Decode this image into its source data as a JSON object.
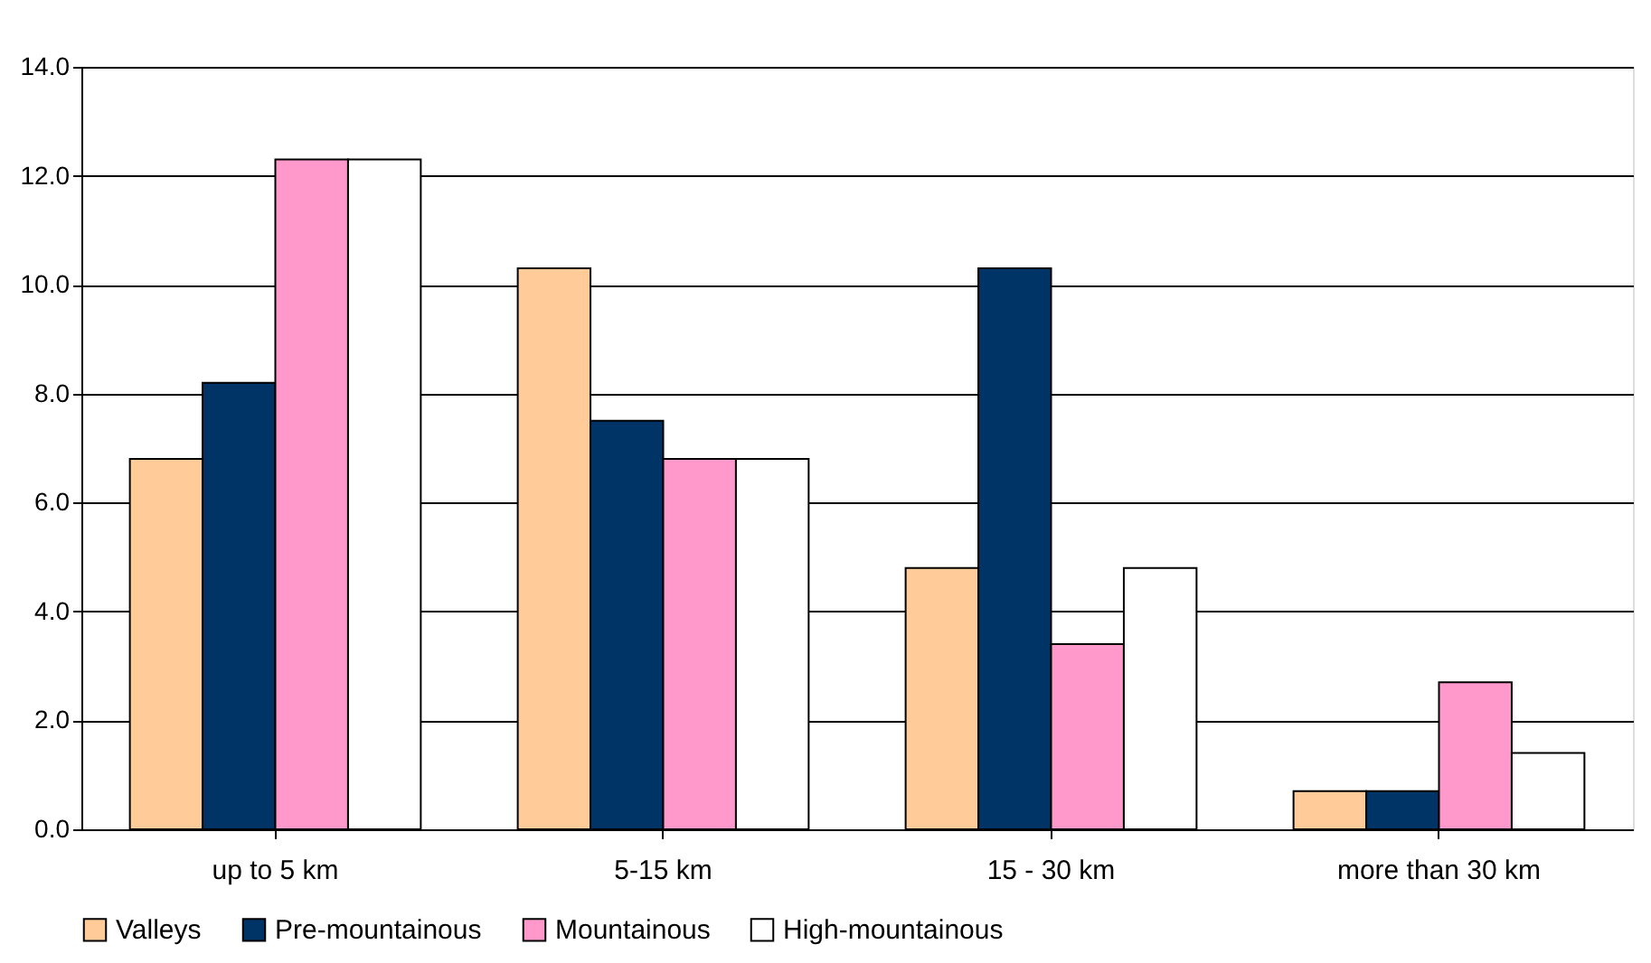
{
  "chart_data": {
    "type": "bar",
    "categories": [
      "up to 5 km",
      "5-15 km",
      "15 - 30 km",
      "more than 30 km"
    ],
    "series": [
      {
        "name": "Valleys",
        "color": "#ffcc99",
        "values": [
          6.8,
          10.3,
          4.8,
          0.7
        ]
      },
      {
        "name": "Pre-mountainous",
        "color": "#003366",
        "values": [
          8.2,
          7.5,
          10.3,
          0.7
        ]
      },
      {
        "name": "Mountainous",
        "color": "#ff99cc",
        "values": [
          12.3,
          6.8,
          3.4,
          2.7
        ]
      },
      {
        "name": "High-mountainous",
        "color": "#ffffff",
        "values": [
          12.3,
          6.8,
          4.8,
          1.4
        ]
      }
    ],
    "ylim": [
      0,
      14
    ],
    "yticks": [
      {
        "value": 0,
        "label": "0.0"
      },
      {
        "value": 2,
        "label": "2.0"
      },
      {
        "value": 4,
        "label": "4.0"
      },
      {
        "value": 6,
        "label": "6.0"
      },
      {
        "value": 8,
        "label": "8.0"
      },
      {
        "value": 10,
        "label": "10.0"
      },
      {
        "value": 12,
        "label": "12.0"
      },
      {
        "value": 14,
        "label": "14.0"
      }
    ],
    "grid": "y",
    "legend": "bottom"
  }
}
